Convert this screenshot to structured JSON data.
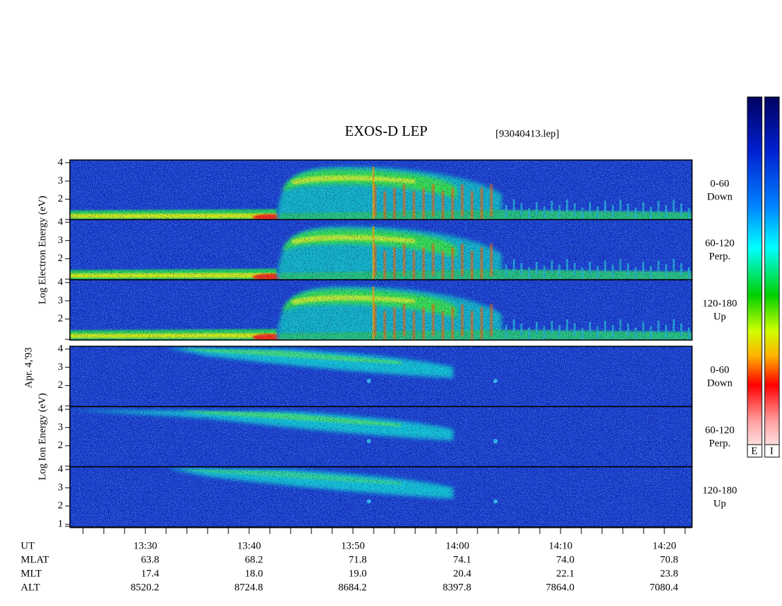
{
  "title": "EXOS-D LEP",
  "file": "[93040413.lep]",
  "date": "Apr. 4,'93",
  "colorbar": {
    "labels": [
      "E",
      "I"
    ]
  },
  "groups": [
    {
      "y_label": "Log Electron Energy (eV)",
      "kind": "electron",
      "panels": [
        {
          "label": "0-60",
          "sub": "Down",
          "ylim": [
            0.85,
            4.15
          ],
          "yticks": [
            2,
            3,
            4
          ]
        },
        {
          "label": "60-120",
          "sub": "Perp.",
          "ylim": [
            0.85,
            4.15
          ],
          "yticks": [
            2,
            3,
            4
          ]
        },
        {
          "label": "120-180",
          "sub": "Up",
          "ylim": [
            0.85,
            4.15
          ],
          "yticks": [
            2,
            3,
            4
          ]
        }
      ]
    },
    {
      "y_label": "Log Ion Energy (eV)",
      "kind": "ion",
      "panels": [
        {
          "label": "0-60",
          "sub": "Down",
          "ylim": [
            0.85,
            4.15
          ],
          "yticks": [
            2,
            3,
            4
          ]
        },
        {
          "label": "60-120",
          "sub": "Perp.",
          "ylim": [
            0.85,
            4.15
          ],
          "yticks": [
            2,
            3,
            4
          ]
        },
        {
          "label": "120-180",
          "sub": "Up",
          "ylim": [
            0.85,
            4.15
          ],
          "yticks": [
            1,
            2,
            3,
            4
          ]
        }
      ]
    }
  ],
  "ephemeris": {
    "rows": [
      [
        "UT",
        "13:30",
        "13:40",
        "13:50",
        "14:00",
        "14:10",
        "14:20"
      ],
      [
        "MLAT",
        "63.8",
        "68.2",
        "71.8",
        "74.1",
        "74.0",
        "70.8"
      ],
      [
        "MLT",
        "17.4",
        "18.0",
        "19.0",
        "20.4",
        "22.1",
        "23.8"
      ],
      [
        "ALT",
        "8520.2",
        "8724.8",
        "8684.2",
        "8397.8",
        "7864.0",
        "7080.4"
      ]
    ]
  }
}
